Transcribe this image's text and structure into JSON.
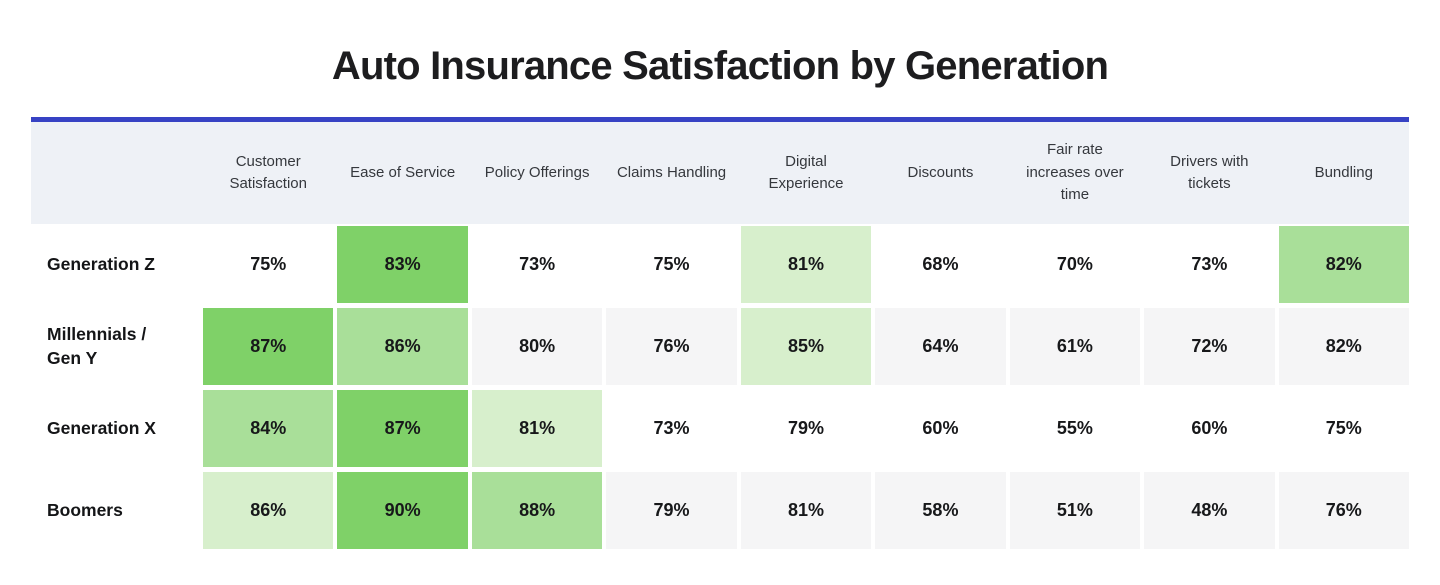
{
  "title": "Auto Insurance Satisfaction by Generation",
  "colors": {
    "accent_line": "#3742c4",
    "header_band": "#eef1f6",
    "zebra_cell": "#f5f5f6",
    "plain_cell": "#ffffff",
    "rank1_green": "#7fd168",
    "rank2_green": "#a9df99",
    "rank3_green": "#d7efcc",
    "title_text": "#1d1d1f",
    "header_text": "#35383d",
    "value_text": "#17181a"
  },
  "chart_data": {
    "type": "heatmap",
    "title": "Auto Insurance Satisfaction by Generation",
    "value_suffix": "%",
    "columns": [
      "Customer Satisfaction",
      "Ease of Service",
      "Policy Offerings",
      "Claims Handling",
      "Digital Experience",
      "Discounts",
      "Fair rate increases over time",
      "Drivers with tickets",
      "Bundling"
    ],
    "rows": [
      {
        "label": "Generation Z",
        "label_lines": [
          "Generation Z"
        ],
        "values": [
          75,
          83,
          73,
          75,
          81,
          68,
          70,
          73,
          82
        ],
        "highlight_rank": [
          0,
          1,
          0,
          0,
          3,
          0,
          0,
          0,
          2
        ],
        "zebra": false
      },
      {
        "label": "Millennials / Gen Y",
        "label_lines": [
          "Millennials /",
          "Gen Y"
        ],
        "values": [
          87,
          86,
          80,
          76,
          85,
          64,
          61,
          72,
          82
        ],
        "highlight_rank": [
          1,
          2,
          0,
          0,
          3,
          0,
          0,
          0,
          0
        ],
        "zebra": true
      },
      {
        "label": "Generation X",
        "label_lines": [
          "Generation X"
        ],
        "values": [
          84,
          87,
          81,
          73,
          79,
          60,
          55,
          60,
          75
        ],
        "highlight_rank": [
          2,
          1,
          3,
          0,
          0,
          0,
          0,
          0,
          0
        ],
        "zebra": false
      },
      {
        "label": "Boomers",
        "label_lines": [
          "Boomers"
        ],
        "values": [
          86,
          90,
          88,
          79,
          81,
          58,
          51,
          48,
          76
        ],
        "highlight_rank": [
          3,
          1,
          2,
          0,
          0,
          0,
          0,
          0,
          0
        ],
        "zebra": true
      }
    ]
  }
}
